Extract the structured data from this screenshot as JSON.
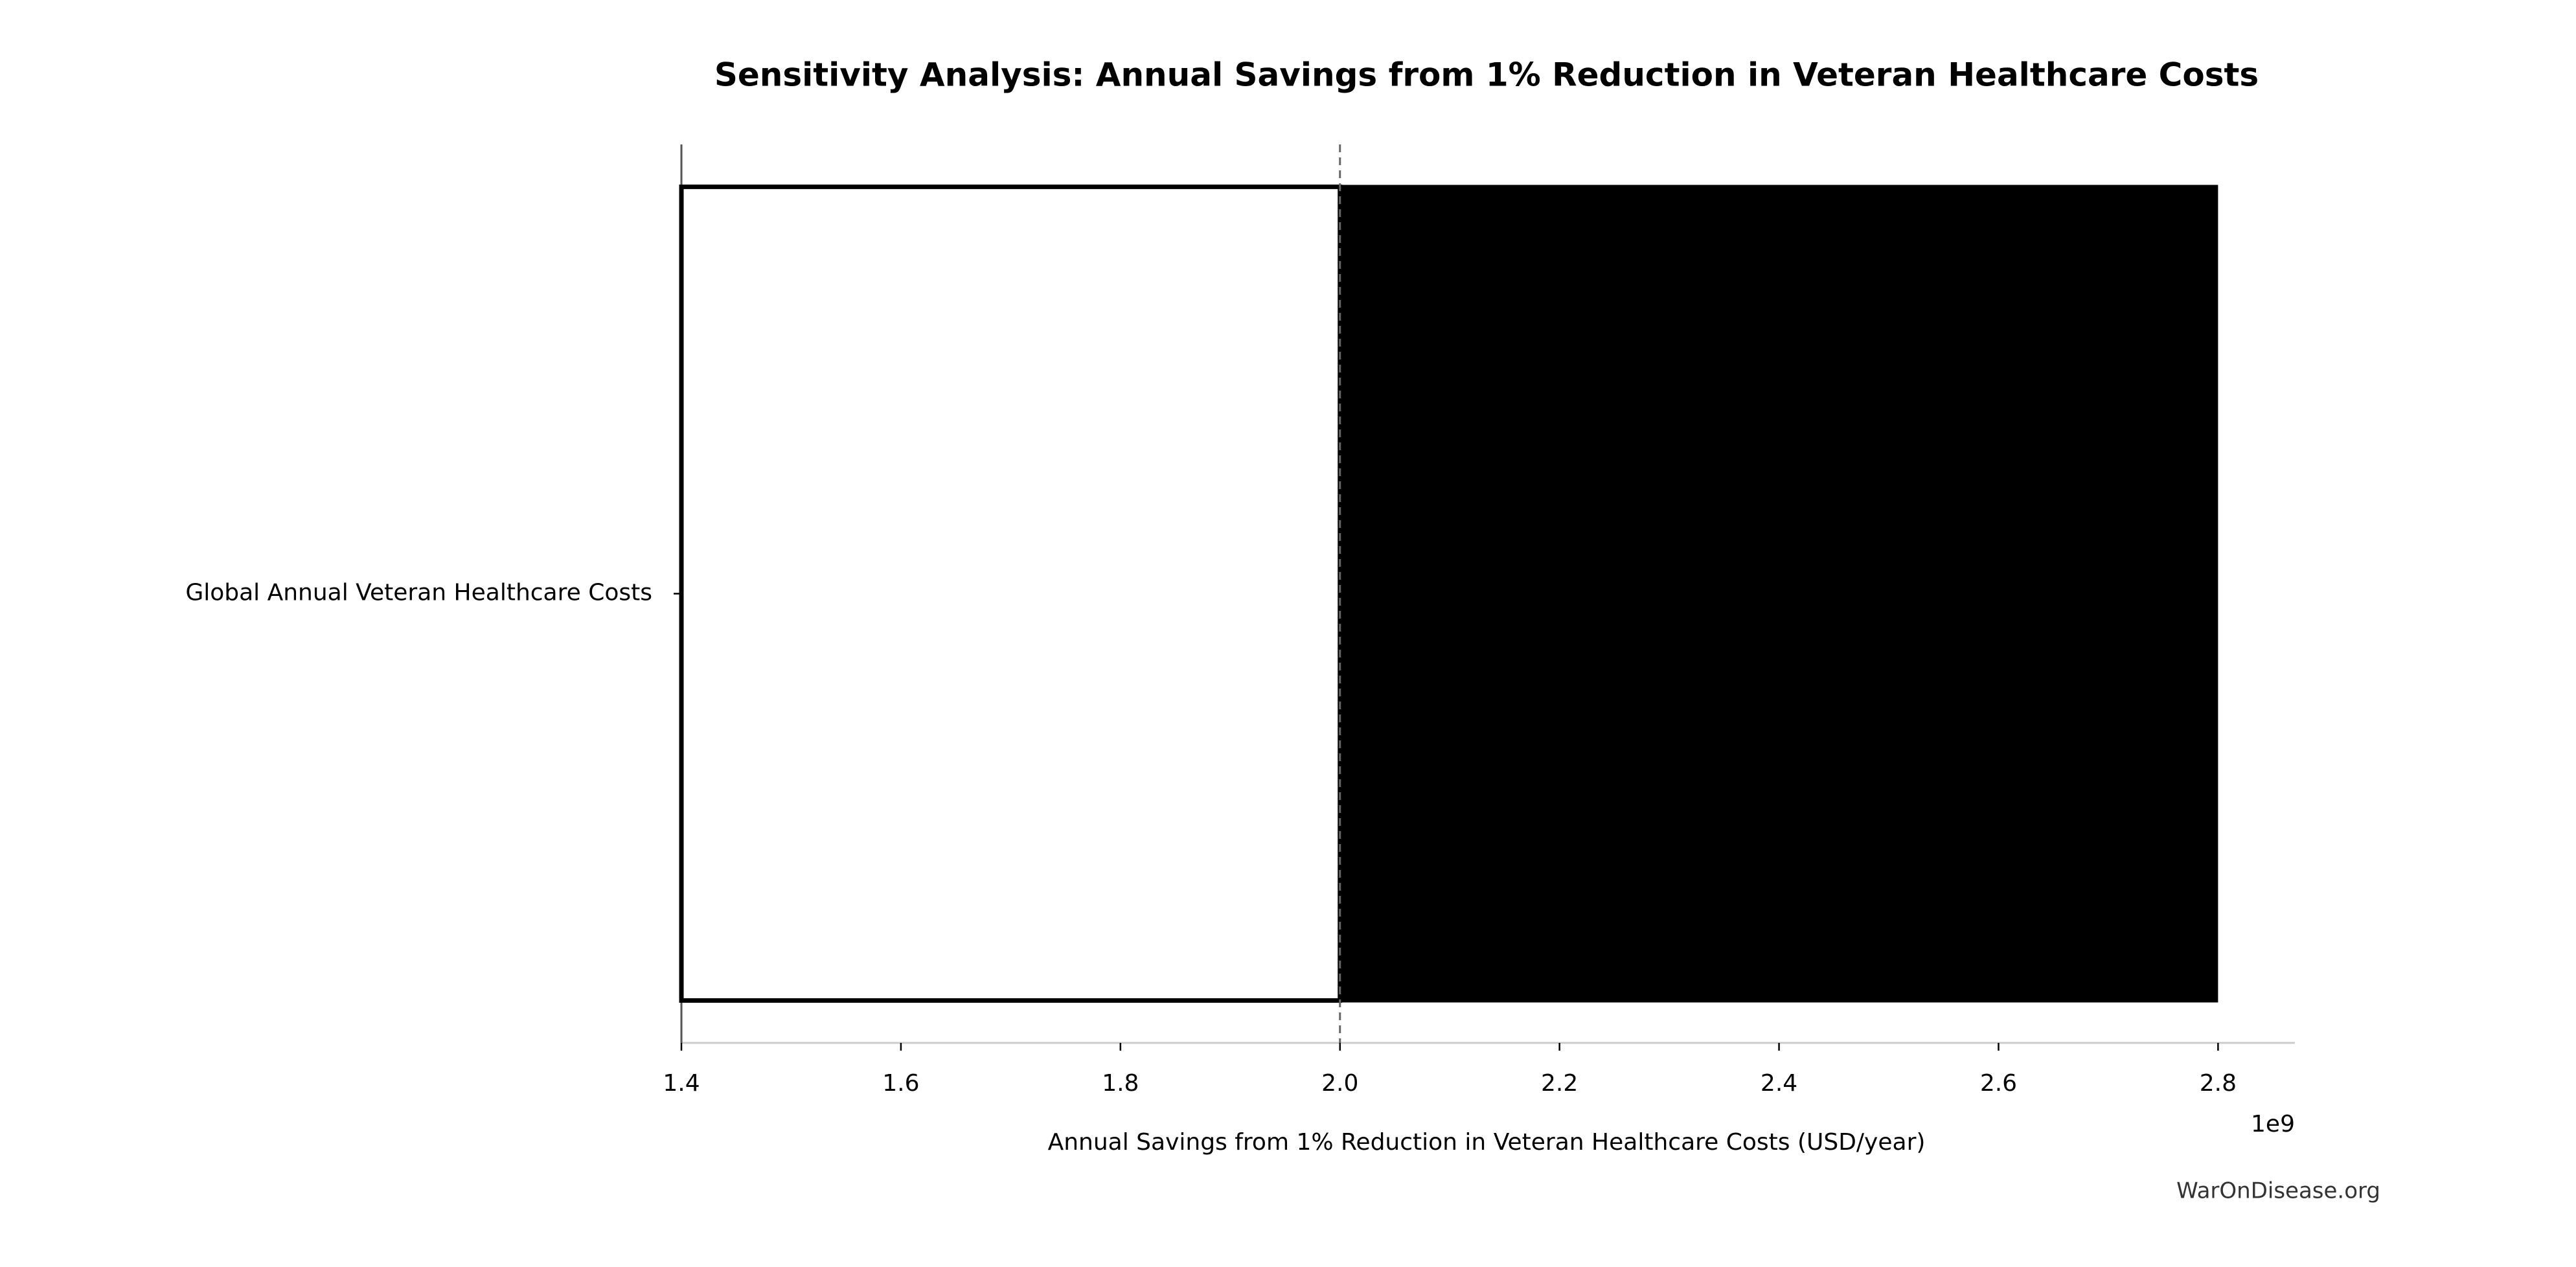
{
  "chart_data": {
    "type": "tornado",
    "title": "Sensitivity Analysis: Annual Savings from 1% Reduction in Veteran Healthcare Costs",
    "xlabel": "Annual Savings from 1% Reduction in Veteran Healthcare Costs (USD/year)",
    "offset_label": "1e9",
    "footer": "WarOnDisease.org",
    "categories": [
      "Global Annual Veteran Healthcare Costs"
    ],
    "baseline": 2000000000,
    "low_values": [
      1400000000
    ],
    "high_values": [
      2800000000
    ],
    "low_color": "#ffffff",
    "high_color": "#000000",
    "xlim": [
      1400000000,
      2870000000
    ],
    "xticks": [
      {
        "value": 1400000000,
        "label": "1.4"
      },
      {
        "value": 1600000000,
        "label": "1.6"
      },
      {
        "value": 1800000000,
        "label": "1.8"
      },
      {
        "value": 2000000000,
        "label": "2.0"
      },
      {
        "value": 2200000000,
        "label": "2.2"
      },
      {
        "value": 2400000000,
        "label": "2.4"
      },
      {
        "value": 2600000000,
        "label": "2.6"
      },
      {
        "value": 2800000000,
        "label": "2.8"
      }
    ]
  }
}
